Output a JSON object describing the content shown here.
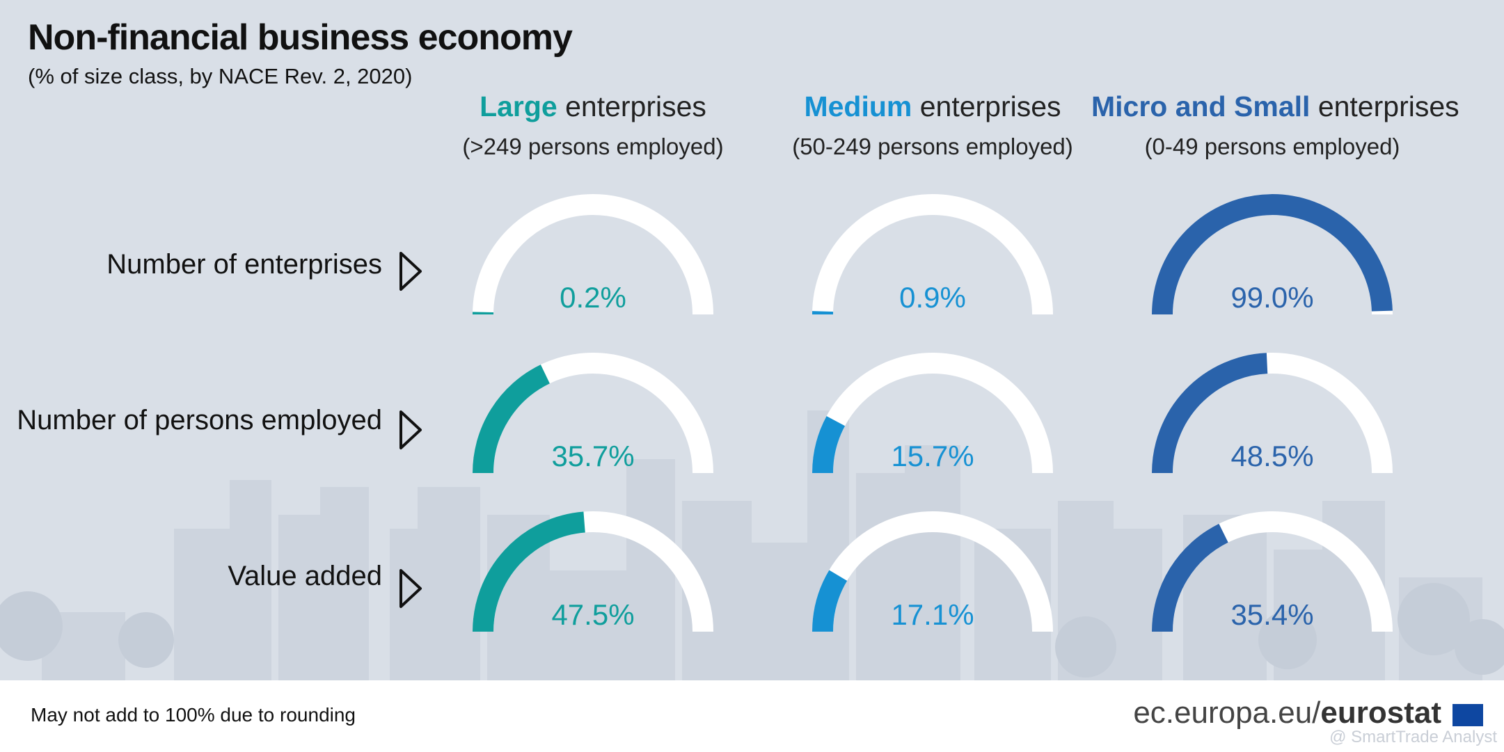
{
  "title": "Non-financial business economy",
  "subtitle": "(% of size class, by NACE Rev. 2, 2020)",
  "columns": [
    {
      "highlight": "Large",
      "rest": " enterprises",
      "sub": "(>249 persons employed)",
      "color": "#0f9e9c"
    },
    {
      "highlight": "Medium",
      "rest": " enterprises",
      "sub": "(50-249 persons employed)",
      "color": "#1691d3"
    },
    {
      "highlight": "Micro and Small",
      "rest": " enterprises",
      "sub": "(0-49 persons employed)",
      "color": "#2a63ab"
    }
  ],
  "rows": [
    {
      "label": "Number of enterprises"
    },
    {
      "label": "Number of persons employed"
    },
    {
      "label": "Value added"
    }
  ],
  "chart_data": {
    "type": "gauge",
    "unit": "%",
    "categories": [
      "Large enterprises",
      "Medium enterprises",
      "Micro and Small enterprises"
    ],
    "series": [
      {
        "name": "Number of enterprises",
        "values": [
          0.2,
          0.9,
          99.0
        ],
        "labels": [
          "0.2%",
          "0.9%",
          "99.0%"
        ]
      },
      {
        "name": "Number of persons employed",
        "values": [
          35.7,
          15.7,
          48.5
        ],
        "labels": [
          "35.7%",
          "15.7%",
          "48.5%"
        ]
      },
      {
        "name": "Value added",
        "values": [
          47.5,
          17.1,
          35.4
        ],
        "labels": [
          "47.5%",
          "17.1%",
          "35.4%"
        ]
      }
    ],
    "range": [
      0,
      100
    ],
    "track_color": "#ffffff"
  },
  "footer": {
    "note": "May not add to 100% due to rounding",
    "source_prefix": "ec.europa.eu/",
    "source_brand": "eurostat",
    "watermark": "@ SmartTrade Analyst"
  }
}
